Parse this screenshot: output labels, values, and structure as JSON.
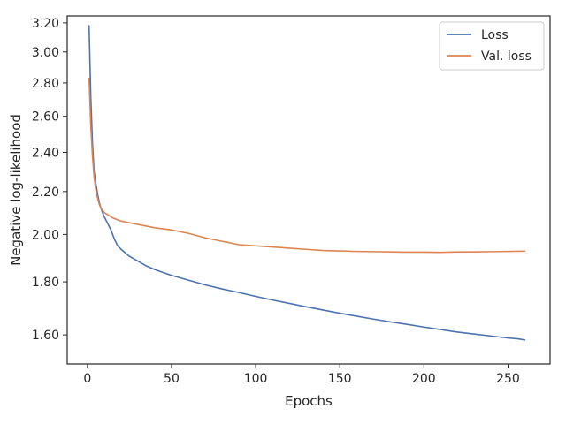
{
  "chart_data": {
    "type": "line",
    "title": "",
    "xlabel": "Epochs",
    "ylabel": "Negative log-likelihood",
    "y_scale": "log",
    "xlim": [
      -12,
      275
    ],
    "ylim": [
      1.5,
      3.25
    ],
    "x_ticks": [
      0,
      50,
      100,
      150,
      200,
      250
    ],
    "y_ticks": [
      1.6,
      1.8,
      2.0,
      2.2,
      2.4,
      2.6,
      2.8,
      3.0,
      3.2
    ],
    "y_tick_labels": [
      "1.60",
      "1.80",
      "2.00",
      "2.20",
      "2.40",
      "2.60",
      "2.80",
      "3.00",
      "3.20"
    ],
    "grid": false,
    "legend_position": "top-right",
    "series": [
      {
        "name": "Loss",
        "color": "#4c72b0",
        "points": [
          [
            1,
            3.18
          ],
          [
            2,
            2.72
          ],
          [
            3,
            2.45
          ],
          [
            4,
            2.3
          ],
          [
            5,
            2.24
          ],
          [
            6,
            2.19
          ],
          [
            7,
            2.15
          ],
          [
            8,
            2.12
          ],
          [
            10,
            2.08
          ],
          [
            12,
            2.05
          ],
          [
            14,
            2.02
          ],
          [
            16,
            1.98
          ],
          [
            18,
            1.95
          ],
          [
            20,
            1.935
          ],
          [
            25,
            1.905
          ],
          [
            30,
            1.885
          ],
          [
            35,
            1.865
          ],
          [
            40,
            1.85
          ],
          [
            45,
            1.838
          ],
          [
            50,
            1.826
          ],
          [
            60,
            1.807
          ],
          [
            70,
            1.788
          ],
          [
            80,
            1.772
          ],
          [
            90,
            1.758
          ],
          [
            100,
            1.743
          ],
          [
            110,
            1.729
          ],
          [
            120,
            1.716
          ],
          [
            130,
            1.703
          ],
          [
            140,
            1.691
          ],
          [
            150,
            1.679
          ],
          [
            160,
            1.668
          ],
          [
            170,
            1.657
          ],
          [
            180,
            1.647
          ],
          [
            190,
            1.638
          ],
          [
            200,
            1.628
          ],
          [
            210,
            1.619
          ],
          [
            220,
            1.61
          ],
          [
            230,
            1.603
          ],
          [
            240,
            1.596
          ],
          [
            250,
            1.589
          ],
          [
            256,
            1.586
          ],
          [
            260,
            1.582
          ]
        ]
      },
      {
        "name": "Val. loss",
        "color": "#dd8452",
        "points": [
          [
            1,
            2.83
          ],
          [
            2,
            2.55
          ],
          [
            3,
            2.38
          ],
          [
            4,
            2.27
          ],
          [
            5,
            2.21
          ],
          [
            6,
            2.17
          ],
          [
            7,
            2.14
          ],
          [
            8,
            2.12
          ],
          [
            10,
            2.1
          ],
          [
            15,
            2.075
          ],
          [
            20,
            2.06
          ],
          [
            30,
            2.045
          ],
          [
            40,
            2.03
          ],
          [
            50,
            2.02
          ],
          [
            60,
            2.005
          ],
          [
            70,
            1.985
          ],
          [
            80,
            1.97
          ],
          [
            90,
            1.955
          ],
          [
            100,
            1.95
          ],
          [
            110,
            1.945
          ],
          [
            120,
            1.94
          ],
          [
            130,
            1.935
          ],
          [
            140,
            1.93
          ],
          [
            150,
            1.928
          ],
          [
            160,
            1.926
          ],
          [
            170,
            1.925
          ],
          [
            180,
            1.924
          ],
          [
            190,
            1.923
          ],
          [
            200,
            1.923
          ],
          [
            210,
            1.922
          ],
          [
            220,
            1.924
          ],
          [
            230,
            1.924
          ],
          [
            240,
            1.925
          ],
          [
            250,
            1.926
          ],
          [
            260,
            1.927
          ]
        ]
      }
    ]
  }
}
